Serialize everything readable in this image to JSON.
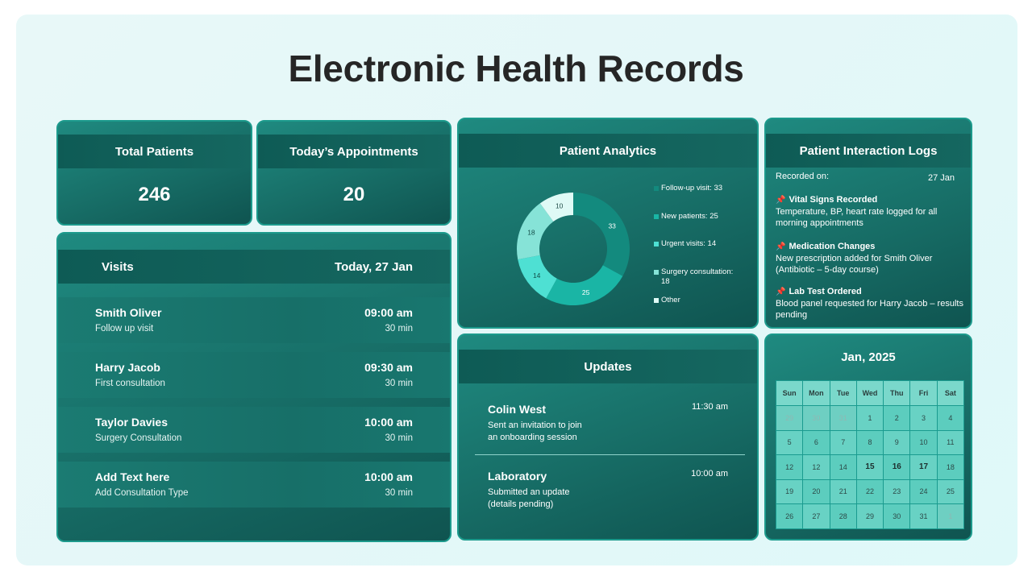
{
  "title": "Electronic Health Records",
  "stats": {
    "total_patients": {
      "label": "Total Patients",
      "value": "246"
    },
    "appointments": {
      "label": "Today’s Appointments",
      "value": "20"
    }
  },
  "visits": {
    "title": "Visits",
    "date": "Today, 27 Jan",
    "rows": [
      {
        "name": "Smith Oliver",
        "type": "Follow up visit",
        "time": "09:00 am",
        "duration": "30 min"
      },
      {
        "name": "Harry Jacob",
        "type": "First consultation",
        "time": "09:30 am",
        "duration": "30 min"
      },
      {
        "name": "Taylor Davies",
        "type": "Surgery Consultation",
        "time": "10:00 am",
        "duration": "30 min"
      },
      {
        "name": "Add Text here",
        "type": "Add Consultation Type",
        "time": "10:00 am",
        "duration": "30 min"
      }
    ]
  },
  "analytics": {
    "title": "Patient Analytics",
    "legend": [
      "Follow-up visit: 33",
      "New patients: 25",
      "Urgent visits: 14",
      "Surgery consultation: 18",
      "Other"
    ]
  },
  "chart_data": {
    "type": "pie",
    "title": "Patient Analytics",
    "donut": true,
    "categories": [
      "Follow-up visit",
      "New patients",
      "Urgent visits",
      "Surgery consultation",
      "Other"
    ],
    "values": [
      33,
      25,
      14,
      18,
      10
    ],
    "colors": [
      "#138a7e",
      "#1ab5a5",
      "#4ee0d3",
      "#86e3d7",
      "#dffaf6"
    ]
  },
  "logs": {
    "title": "Patient Interaction Logs",
    "recorded_label": "Recorded on:",
    "recorded_date": "27 Jan",
    "entries": [
      {
        "title": "Vital Signs Recorded",
        "line1": "Temperature, BP, heart rate logged for all",
        "line2": "morning appointments"
      },
      {
        "title": "Medication Changes",
        "line1": "New prescription added for Smith Oliver",
        "line2": "(Antibiotic – 5-day course)"
      },
      {
        "title": "Lab Test Ordered",
        "line1": "Blood panel requested for Harry Jacob – results",
        "line2": "pending"
      }
    ]
  },
  "updates": {
    "title": "Updates",
    "items": [
      {
        "name": "Colin West",
        "time": "11:30 am",
        "line1": "Sent an invitation to join",
        "line2": "an onboarding session"
      },
      {
        "name": "Laboratory",
        "time": "10:00 am",
        "line1": "Submitted an update",
        "line2": "(details pending)"
      }
    ]
  },
  "calendar": {
    "title": "Jan, 2025",
    "days": [
      "Sun",
      "Mon",
      "Tue",
      "Wed",
      "Thu",
      "Fri",
      "Sat"
    ],
    "weeks": [
      [
        "29",
        "30",
        "31",
        "1",
        "2",
        "3",
        "4"
      ],
      [
        "5",
        "6",
        "7",
        "8",
        "9",
        "10",
        "11"
      ],
      [
        "12",
        "12",
        "14",
        "15",
        "16",
        "17",
        "18"
      ],
      [
        "19",
        "20",
        "21",
        "22",
        "23",
        "24",
        "25"
      ],
      [
        "26",
        "27",
        "28",
        "29",
        "30",
        "31",
        "1"
      ]
    ],
    "highlighted": [
      "15",
      "16",
      "17"
    ]
  },
  "colors": {
    "card_bg": "#176d66",
    "card_header": "#0e5b55",
    "card_border": "#1c9a8c",
    "page_bg": "#e4f7f8",
    "title_text": "#262626",
    "pin": "#e8466c"
  },
  "icons": [
    "pushpin-icon"
  ]
}
